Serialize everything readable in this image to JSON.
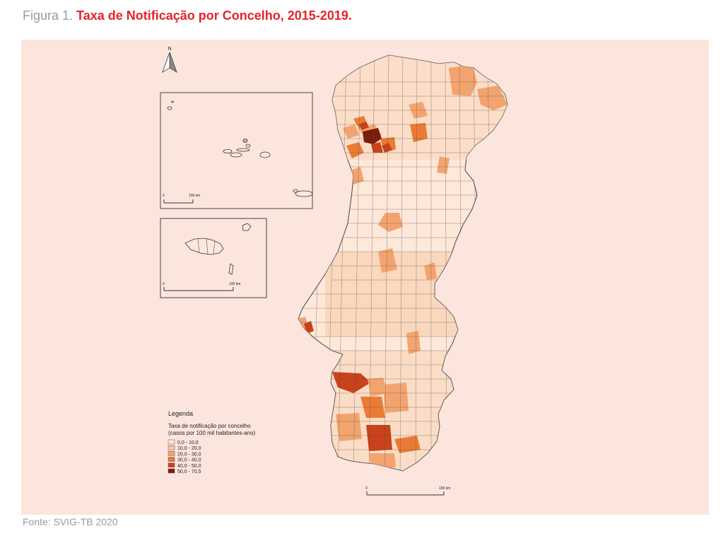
{
  "caption": {
    "prefix": "Figura 1. ",
    "title": "Taxa de Notificação por Concelho, 2015-2019."
  },
  "source": "Fonte: SVIG-TB 2020",
  "map": {
    "north_arrow_label": "N",
    "inset_azores": {
      "scale_start": "0",
      "scale_end": "100 km"
    },
    "inset_madeira": {
      "scale_start": "0",
      "scale_end": "100 km"
    },
    "mainland_scale": {
      "scale_start": "0",
      "scale_end": "100 km"
    },
    "legend": {
      "heading": "Legenda",
      "subtitle_line1": "Taxa de notificação por concelho",
      "subtitle_line2": "(casos por 100 mil habitantes-ano)",
      "classes": [
        {
          "label": "0,0 - 10,0",
          "color": "#fde8da"
        },
        {
          "label": "10,0 - 20,0",
          "color": "#f7c8a2"
        },
        {
          "label": "20,0 - 30,0",
          "color": "#f3a46e"
        },
        {
          "label": "30,0 - 40,0",
          "color": "#ea7b35"
        },
        {
          "label": "40,0 - 50,0",
          "color": "#c9421b"
        },
        {
          "label": "50,0 - 70,5",
          "color": "#7a1e0a"
        }
      ]
    }
  }
}
